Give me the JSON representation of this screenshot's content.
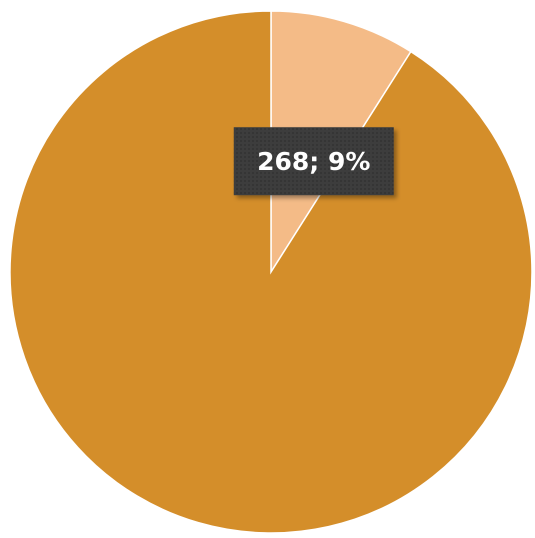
{
  "chart_data": {
    "type": "pie",
    "slices": [
      {
        "label": "",
        "value": 268,
        "percent": "9%",
        "data_label": "268; 9%",
        "color": "#F4BB87"
      },
      {
        "label": "",
        "value": 2710,
        "percent": "91%",
        "data_label": "",
        "color": "#D48E2A"
      }
    ],
    "start_angle_deg": 0,
    "direction": "clockwise",
    "legend": "none",
    "label_style": {
      "background": "#3D3D3D",
      "text_color": "#FFFFFF"
    }
  }
}
